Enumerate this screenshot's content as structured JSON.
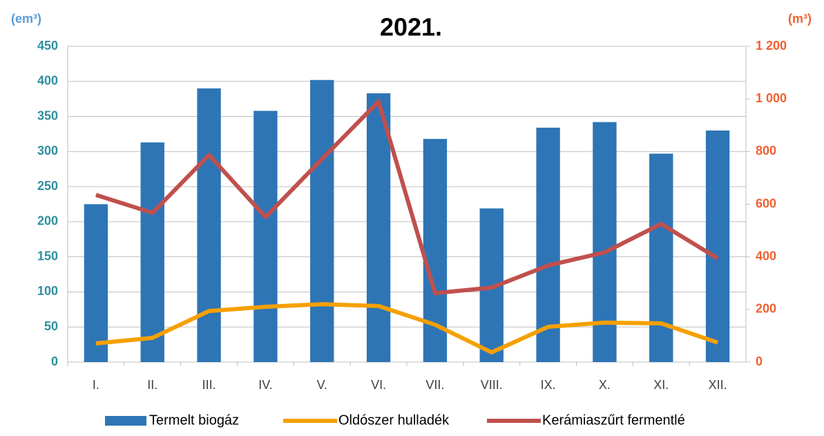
{
  "chart_data": {
    "type": "bar",
    "title": "2021.",
    "y_label": "(em³)",
    "y2_label": "(m³)",
    "categories": [
      "I.",
      "II.",
      "III.",
      "IV.",
      "V.",
      "VI.",
      "VII.",
      "VIII.",
      "IX.",
      "X.",
      "XI.",
      "XII."
    ],
    "series": [
      {
        "name": "Termelt biogáz",
        "type": "bar",
        "color": "#2e75b6",
        "values": [
          225,
          313,
          390,
          358,
          402,
          383,
          318,
          219,
          334,
          342,
          297,
          330
        ]
      },
      {
        "name": "Oldószer hulladék",
        "type": "line",
        "axis": "y2",
        "color": "#f5a000",
        "values": [
          71,
          92,
          194,
          210,
          220,
          213,
          142,
          37,
          134,
          150,
          147,
          74
        ]
      },
      {
        "name": "Kerámiaszűrt fermentlé",
        "type": "line",
        "axis": "y2",
        "color": "#c0504d",
        "values": [
          635,
          567,
          787,
          551,
          772,
          990,
          262,
          283,
          367,
          417,
          525,
          394
        ]
      }
    ],
    "ylim": [
      0,
      450
    ],
    "yticks": [
      0,
      50,
      100,
      150,
      200,
      250,
      300,
      350,
      400,
      450
    ],
    "y2lim": [
      0,
      1200
    ],
    "y2ticks": [
      0,
      200,
      400,
      600,
      800,
      {
        "value": 1000,
        "label": "1 000"
      },
      {
        "value": 1200,
        "label": "1 200"
      }
    ],
    "grid": true,
    "legend": "bottom"
  }
}
